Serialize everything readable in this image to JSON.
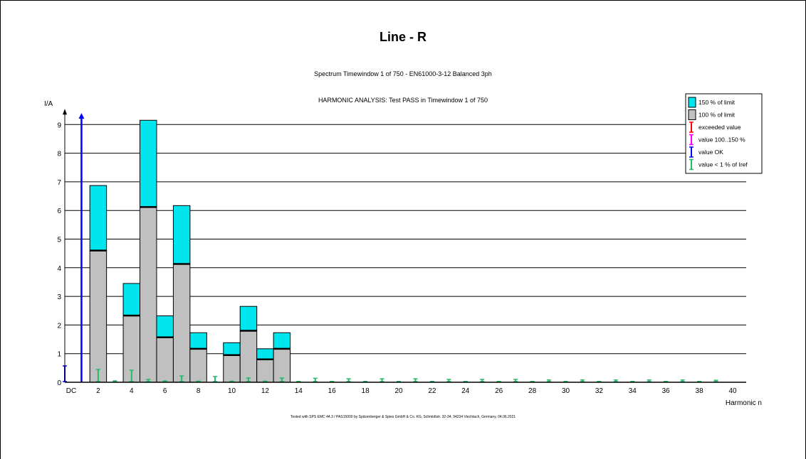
{
  "chart_data": {
    "type": "bar",
    "title": "Line - R",
    "subtitle": "Spectrum Timewindow 1 of 750 - EN61000-3-12 Balanced 3ph",
    "status_text": "HARMONIC ANALYSIS: Test PASS in Timewindow 1 of 750",
    "footer": "Tested with SPS EMC 44.3 / PAS15000 by Spitzenberger & Spies GmbH & Co. KG, Schmidtstr. 32-34, 94234 Viechtach, Germany, 04.06.2021",
    "xlabel": "Harmonic n",
    "ylabel": "I/A",
    "xlim": [
      0,
      40
    ],
    "ylim": [
      0,
      9.3
    ],
    "yticks": [
      0,
      1,
      2,
      3,
      4,
      5,
      6,
      7,
      8,
      9
    ],
    "xticks": [
      "DC",
      "2",
      "4",
      "6",
      "8",
      "10",
      "12",
      "14",
      "16",
      "18",
      "20",
      "22",
      "24",
      "26",
      "28",
      "30",
      "32",
      "34",
      "36",
      "38",
      "40"
    ],
    "grid": "horizontal",
    "legend_position": "top-right",
    "legend": [
      {
        "label": "150 %  of limit",
        "color": "#00e5ee",
        "kind": "box"
      },
      {
        "label": "100 %  of limit",
        "color": "#c0c0c0",
        "kind": "box"
      },
      {
        "label": "exceeded value",
        "color": "#ff0000",
        "kind": "marker"
      },
      {
        "label": "value 100..150 %",
        "color": "#ff00ff",
        "kind": "marker"
      },
      {
        "label": "value OK",
        "color": "#0000ff",
        "kind": "marker"
      },
      {
        "label": "value < 1 %  of Iref",
        "color": "#22bb66",
        "kind": "marker"
      }
    ],
    "limits": [
      {
        "n": 2,
        "limit_100": 4.6,
        "limit_150": 6.87
      },
      {
        "n": 4,
        "limit_100": 2.33,
        "limit_150": 3.45
      },
      {
        "n": 5,
        "limit_100": 6.12,
        "limit_150": 9.15
      },
      {
        "n": 6,
        "limit_100": 1.57,
        "limit_150": 2.32
      },
      {
        "n": 7,
        "limit_100": 4.13,
        "limit_150": 6.17
      },
      {
        "n": 8,
        "limit_100": 1.17,
        "limit_150": 1.73
      },
      {
        "n": 10,
        "limit_100": 0.95,
        "limit_150": 1.38
      },
      {
        "n": 11,
        "limit_100": 1.8,
        "limit_150": 2.65
      },
      {
        "n": 12,
        "limit_100": 0.8,
        "limit_150": 1.17
      },
      {
        "n": 13,
        "limit_100": 1.17,
        "limit_150": 1.73
      }
    ],
    "values": [
      {
        "n": 0,
        "value": 0.57,
        "status": "value OK"
      },
      {
        "n": 1,
        "value": 9.4,
        "status": "value OK",
        "arrow": true
      },
      {
        "n": 2,
        "value": 0.45,
        "status": "value < 1 %  of Iref"
      },
      {
        "n": 3,
        "value": 0.05,
        "status": "value < 1 %  of Iref"
      },
      {
        "n": 4,
        "value": 0.42,
        "status": "value < 1 %  of Iref"
      },
      {
        "n": 5,
        "value": 0.1,
        "status": "value < 1 %  of Iref"
      },
      {
        "n": 6,
        "value": 0.05,
        "status": "value < 1 %  of Iref"
      },
      {
        "n": 7,
        "value": 0.22,
        "status": "value < 1 %  of Iref"
      },
      {
        "n": 8,
        "value": 0.04,
        "status": "value < 1 %  of Iref"
      },
      {
        "n": 9,
        "value": 0.2,
        "status": "value < 1 %  of Iref"
      },
      {
        "n": 10,
        "value": 0.04,
        "status": "value < 1 %  of Iref"
      },
      {
        "n": 11,
        "value": 0.15,
        "status": "value < 1 %  of Iref"
      },
      {
        "n": 12,
        "value": 0.04,
        "status": "value < 1 %  of Iref"
      },
      {
        "n": 13,
        "value": 0.15,
        "status": "value < 1 %  of Iref"
      },
      {
        "n": 14,
        "value": 0.03,
        "status": "value < 1 %  of Iref"
      },
      {
        "n": 15,
        "value": 0.14,
        "status": "value < 1 %  of Iref"
      },
      {
        "n": 16,
        "value": 0.03,
        "status": "value < 1 %  of Iref"
      },
      {
        "n": 17,
        "value": 0.12,
        "status": "value < 1 %  of Iref"
      },
      {
        "n": 18,
        "value": 0.03,
        "status": "value < 1 %  of Iref"
      },
      {
        "n": 19,
        "value": 0.12,
        "status": "value < 1 %  of Iref"
      },
      {
        "n": 20,
        "value": 0.03,
        "status": "value < 1 %  of Iref"
      },
      {
        "n": 21,
        "value": 0.12,
        "status": "value < 1 %  of Iref"
      },
      {
        "n": 22,
        "value": 0.03,
        "status": "value < 1 %  of Iref"
      },
      {
        "n": 23,
        "value": 0.1,
        "status": "value < 1 %  of Iref"
      },
      {
        "n": 24,
        "value": 0.03,
        "status": "value < 1 %  of Iref"
      },
      {
        "n": 25,
        "value": 0.1,
        "status": "value < 1 %  of Iref"
      },
      {
        "n": 26,
        "value": 0.03,
        "status": "value < 1 %  of Iref"
      },
      {
        "n": 27,
        "value": 0.1,
        "status": "value < 1 %  of Iref"
      },
      {
        "n": 28,
        "value": 0.03,
        "status": "value < 1 %  of Iref"
      },
      {
        "n": 29,
        "value": 0.08,
        "status": "value < 1 %  of Iref"
      },
      {
        "n": 30,
        "value": 0.03,
        "status": "value < 1 %  of Iref"
      },
      {
        "n": 31,
        "value": 0.08,
        "status": "value < 1 %  of Iref"
      },
      {
        "n": 32,
        "value": 0.03,
        "status": "value < 1 %  of Iref"
      },
      {
        "n": 33,
        "value": 0.08,
        "status": "value < 1 %  of Iref"
      },
      {
        "n": 34,
        "value": 0.03,
        "status": "value < 1 %  of Iref"
      },
      {
        "n": 35,
        "value": 0.08,
        "status": "value < 1 %  of Iref"
      },
      {
        "n": 36,
        "value": 0.03,
        "status": "value < 1 %  of Iref"
      },
      {
        "n": 37,
        "value": 0.08,
        "status": "value < 1 %  of Iref"
      },
      {
        "n": 38,
        "value": 0.03,
        "status": "value < 1 %  of Iref"
      },
      {
        "n": 39,
        "value": 0.07,
        "status": "value < 1 %  of Iref"
      }
    ]
  }
}
